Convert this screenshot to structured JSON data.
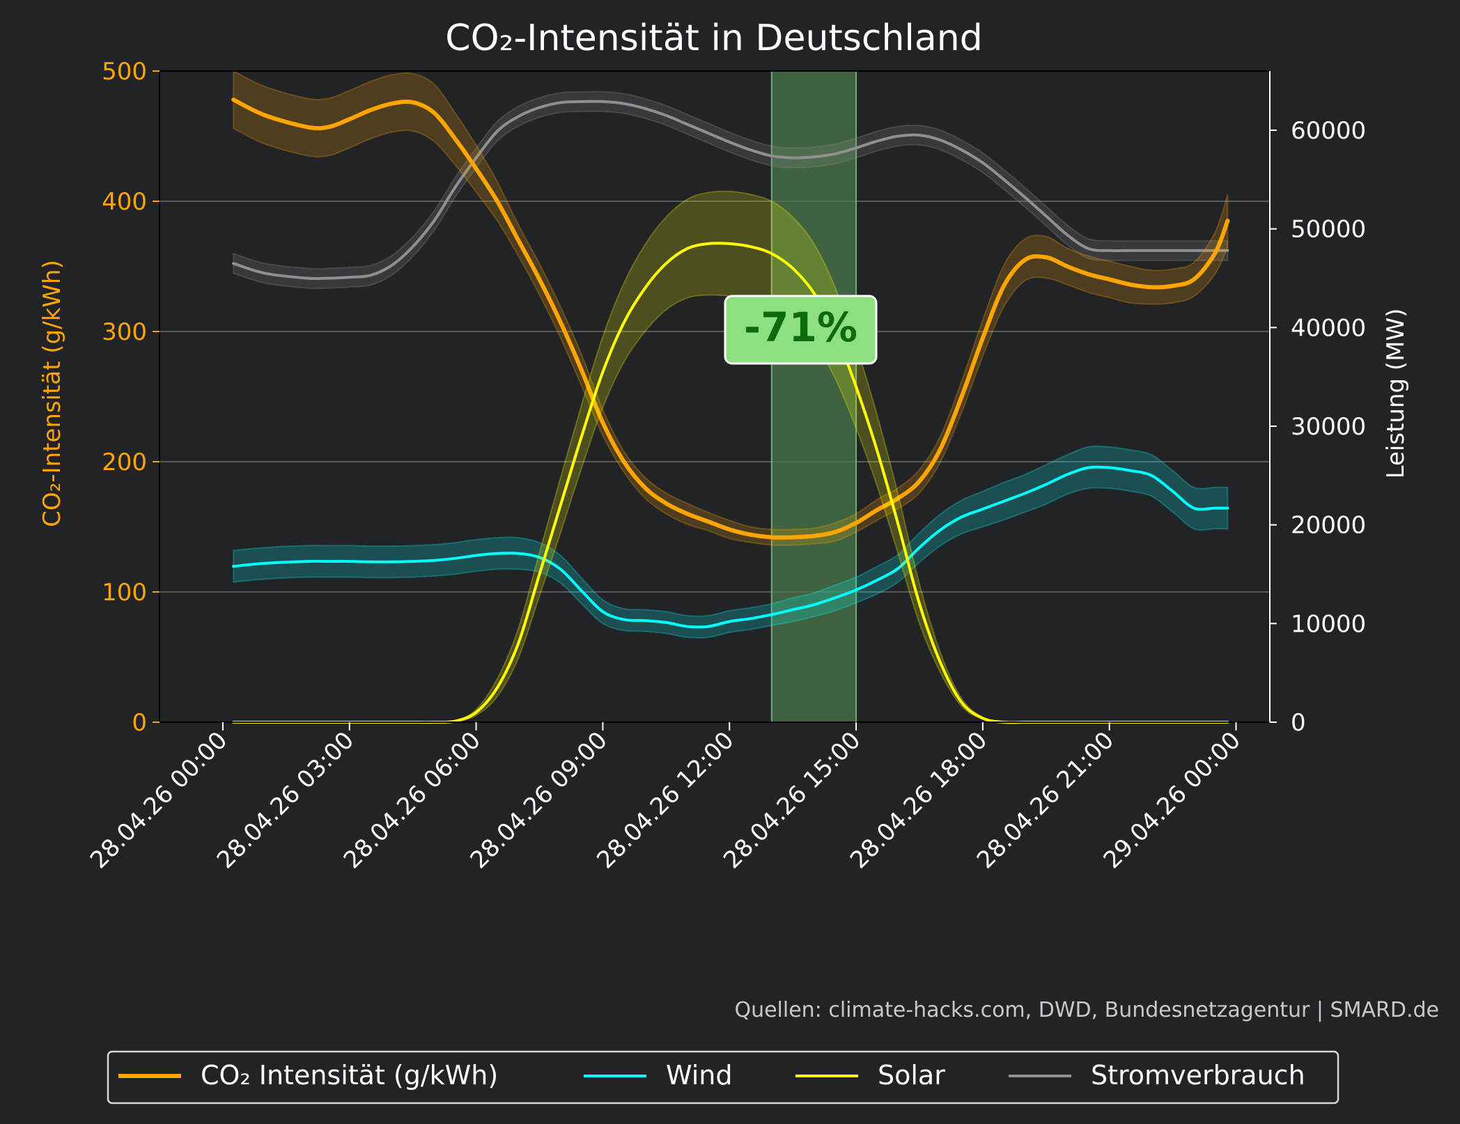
{
  "chart_data": {
    "type": "line",
    "title": "CO₂-Intensität in Deutschland",
    "ylabel_left": "CO₂-Intensität (g/kWh)",
    "ylabel_right": "Leistung (MW)",
    "ylim_left": [
      0,
      500
    ],
    "ylim_right": [
      0,
      66000
    ],
    "yticks_left": [
      0,
      100,
      200,
      300,
      400,
      500
    ],
    "yticks_right": [
      0,
      10000,
      20000,
      30000,
      40000,
      50000,
      60000
    ],
    "xlim_hours": [
      -1.5,
      24.8
    ],
    "xticks": [
      {
        "hour": 0,
        "label": "28.04.26 00:00"
      },
      {
        "hour": 3,
        "label": "28.04.26 03:00"
      },
      {
        "hour": 6,
        "label": "28.04.26 06:00"
      },
      {
        "hour": 9,
        "label": "28.04.26 09:00"
      },
      {
        "hour": 12,
        "label": "28.04.26 12:00"
      },
      {
        "hour": 15,
        "label": "28.04.26 15:00"
      },
      {
        "hour": 18,
        "label": "28.04.26 18:00"
      },
      {
        "hour": 21,
        "label": "28.04.26 21:00"
      },
      {
        "hour": 24,
        "label": "29.04.26 00:00"
      }
    ],
    "grid": "horizontal",
    "legend_position": "bottom-center",
    "highlight": {
      "start_hour": 13,
      "end_hour": 15,
      "label": "-71%"
    },
    "source": "Quellen: climate-hacks.com, DWD, Bundesnetzagentur | SMARD.de",
    "x_hours": [
      0.25,
      1,
      2,
      2.5,
      3,
      3.5,
      4,
      4.5,
      5,
      5.5,
      6,
      6.5,
      7,
      7.5,
      8,
      8.5,
      9,
      9.5,
      10,
      10.5,
      11,
      11.5,
      12,
      12.5,
      13,
      13.5,
      14,
      14.5,
      15,
      15.5,
      16,
      16.5,
      17,
      17.5,
      18,
      18.5,
      19,
      19.5,
      20,
      20.5,
      21,
      21.5,
      22,
      22.5,
      23,
      23.5,
      23.8
    ],
    "series": [
      {
        "name": "CO₂ Intensität (g/kWh)",
        "axis": "left",
        "color": "#ffa500",
        "values": [
          478,
          466,
          457,
          457,
          463,
          470,
          475,
          476,
          468,
          448,
          425,
          400,
          370,
          340,
          307,
          270,
          230,
          200,
          180,
          168,
          160,
          154,
          148,
          144,
          142,
          142,
          143,
          146,
          153,
          163,
          172,
          185,
          210,
          250,
          295,
          335,
          355,
          357,
          350,
          344,
          340,
          336,
          334,
          335,
          340,
          360,
          385
        ],
        "band": [
          22,
          22,
          22,
          22,
          22,
          22,
          22,
          22,
          22,
          20,
          18,
          15,
          12,
          12,
          12,
          12,
          10,
          8,
          8,
          8,
          8,
          7,
          7,
          6,
          6,
          6,
          6,
          7,
          7,
          8,
          8,
          9,
          10,
          12,
          14,
          16,
          16,
          16,
          14,
          14,
          14,
          14,
          13,
          13,
          13,
          16,
          20
        ]
      },
      {
        "name": "Wind",
        "axis": "right",
        "color": "#00ffff",
        "values": [
          15800,
          16100,
          16300,
          16300,
          16300,
          16250,
          16250,
          16300,
          16400,
          16600,
          16900,
          17100,
          17100,
          16700,
          15500,
          13300,
          11200,
          10400,
          10300,
          10100,
          9700,
          9700,
          10200,
          10500,
          10900,
          11400,
          11900,
          12600,
          13400,
          14400,
          15600,
          17700,
          19500,
          20800,
          21600,
          22400,
          23200,
          24100,
          25100,
          25800,
          25800,
          25500,
          25000,
          23400,
          21700,
          21700,
          21700
        ],
        "band": [
          1600,
          1600,
          1600,
          1600,
          1600,
          1600,
          1600,
          1600,
          1600,
          1600,
          1600,
          1600,
          1600,
          1500,
          1400,
          1300,
          1200,
          1100,
          1100,
          1100,
          1100,
          1100,
          1100,
          1100,
          1100,
          1200,
          1200,
          1300,
          1300,
          1400,
          1400,
          1500,
          1600,
          1700,
          1800,
          1900,
          1900,
          2000,
          2000,
          2100,
          2100,
          2100,
          2100,
          2100,
          2100,
          2100,
          2100
        ]
      },
      {
        "name": "Solar",
        "axis": "right",
        "color": "#ffff00",
        "values": [
          0,
          0,
          0,
          0,
          0,
          0,
          0,
          0,
          0,
          100,
          1000,
          3500,
          8000,
          15000,
          22000,
          29000,
          35500,
          40500,
          44000,
          46500,
          48000,
          48500,
          48500,
          48200,
          47500,
          46000,
          43500,
          39500,
          34000,
          27500,
          20000,
          12000,
          6000,
          2000,
          400,
          0,
          0,
          0,
          0,
          0,
          0,
          0,
          0,
          0,
          0,
          0,
          0
        ],
        "band": [
          0,
          0,
          0,
          0,
          0,
          0,
          0,
          0,
          0,
          50,
          300,
          900,
          1500,
          2200,
          2800,
          3200,
          3600,
          4000,
          4400,
          4700,
          5000,
          5200,
          5300,
          5300,
          5300,
          5200,
          5000,
          4600,
          4200,
          3600,
          3000,
          2000,
          1000,
          400,
          100,
          0,
          0,
          0,
          0,
          0,
          0,
          0,
          0,
          0,
          0,
          0,
          0
        ],
        "note_values": [
          0,
          0,
          0,
          0,
          0,
          0,
          0,
          0,
          0,
          0,
          0,
          0,
          0,
          0,
          0,
          0,
          0,
          0,
          0,
          0,
          0,
          0,
          0,
          0,
          0,
          0,
          0,
          0,
          0,
          0,
          0,
          0,
          0,
          0,
          0,
          0,
          0,
          0,
          0,
          0,
          0,
          0,
          0,
          0,
          0,
          0,
          0
        ]
      },
      {
        "name": "Stromverbrauch",
        "axis": "right",
        "color": "#909090",
        "values": [
          46500,
          45500,
          45000,
          45000,
          45100,
          45300,
          46300,
          48200,
          50800,
          54200,
          57200,
          59900,
          61400,
          62300,
          62800,
          62900,
          62900,
          62700,
          62200,
          61500,
          60600,
          59700,
          58800,
          58000,
          57400,
          57200,
          57300,
          57600,
          58200,
          58900,
          59400,
          59500,
          59000,
          58000,
          56700,
          55000,
          53200,
          51300,
          49400,
          48000,
          47800,
          47800,
          47800,
          47800,
          47800,
          47800,
          47800
        ],
        "band": [
          1000,
          1000,
          1000,
          1000,
          1000,
          1000,
          1000,
          1000,
          1000,
          1000,
          1000,
          1000,
          1000,
          1000,
          1000,
          1000,
          1000,
          1000,
          1000,
          1000,
          1000,
          1000,
          1000,
          1000,
          1000,
          1000,
          1000,
          1000,
          1000,
          1000,
          1000,
          1000,
          1000,
          1000,
          1000,
          1000,
          1000,
          1000,
          1000,
          1000,
          1000,
          1000,
          1000,
          1000,
          1000,
          1000,
          1000
        ]
      }
    ]
  },
  "colors": {
    "background": "#222327",
    "axis_left": "#ffa500",
    "axis_right": "#ffffff",
    "highlight_fill": "#4a7a4a",
    "annotation_fill": "#8ddf7f",
    "annotation_text": "#0d6b0d"
  }
}
